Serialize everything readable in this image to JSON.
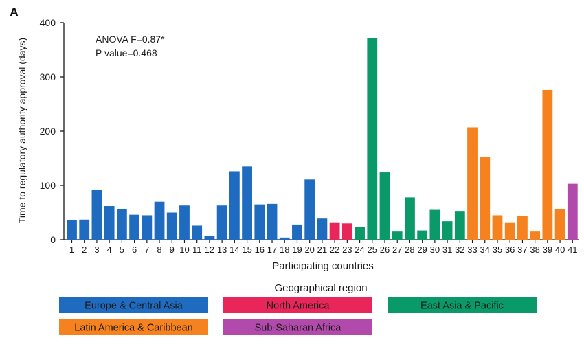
{
  "panel_label": "A",
  "annotation": {
    "line1": "ANOVA F=0.87*",
    "line2": "P value=0.468"
  },
  "colors": {
    "Europe & Central Asia": "#1f6bbf",
    "North America": "#e8265a",
    "East Asia & Pacific": "#0a9a6a",
    "Latin America & Caribbean": "#f5821f",
    "Sub-Saharan Africa": "#b24aab"
  },
  "chart_data": {
    "type": "bar",
    "xlabel": "Participating countries",
    "ylabel": "Time to regulatory authority approval (days)",
    "ylim": [
      0,
      400
    ],
    "yticks": [
      0,
      100,
      200,
      300,
      400
    ],
    "grid": false,
    "categories": [
      "1",
      "2",
      "3",
      "4",
      "5",
      "6",
      "7",
      "8",
      "9",
      "10",
      "11",
      "12",
      "13",
      "14",
      "15",
      "16",
      "17",
      "18",
      "19",
      "20",
      "21",
      "22",
      "23",
      "24",
      "25",
      "26",
      "27",
      "28",
      "29",
      "30",
      "31",
      "32",
      "33",
      "34",
      "35",
      "36",
      "37",
      "38",
      "39",
      "40",
      "41"
    ],
    "values": [
      36,
      37,
      92,
      62,
      56,
      46,
      45,
      70,
      50,
      63,
      26,
      7,
      63,
      126,
      135,
      65,
      66,
      4,
      28,
      111,
      39,
      32,
      30,
      24,
      372,
      124,
      15,
      78,
      17,
      55,
      34,
      53,
      207,
      153,
      45,
      32,
      44,
      15,
      276,
      56,
      103
    ],
    "regions": [
      "Europe & Central Asia",
      "Europe & Central Asia",
      "Europe & Central Asia",
      "Europe & Central Asia",
      "Europe & Central Asia",
      "Europe & Central Asia",
      "Europe & Central Asia",
      "Europe & Central Asia",
      "Europe & Central Asia",
      "Europe & Central Asia",
      "Europe & Central Asia",
      "Europe & Central Asia",
      "Europe & Central Asia",
      "Europe & Central Asia",
      "Europe & Central Asia",
      "Europe & Central Asia",
      "Europe & Central Asia",
      "Europe & Central Asia",
      "Europe & Central Asia",
      "Europe & Central Asia",
      "Europe & Central Asia",
      "North America",
      "North America",
      "East Asia & Pacific",
      "East Asia & Pacific",
      "East Asia & Pacific",
      "East Asia & Pacific",
      "East Asia & Pacific",
      "East Asia & Pacific",
      "East Asia & Pacific",
      "East Asia & Pacific",
      "East Asia & Pacific",
      "Latin America & Caribbean",
      "Latin America & Caribbean",
      "Latin America & Caribbean",
      "Latin America & Caribbean",
      "Latin America & Caribbean",
      "Latin America & Caribbean",
      "Latin America & Caribbean",
      "Latin America & Caribbean",
      "Sub-Saharan Africa"
    ],
    "legend_title": "Geographical region",
    "legend_position": "bottom",
    "legend": [
      "Europe & Central Asia",
      "North America",
      "East Asia & Pacific",
      "Latin America & Caribbean",
      "Sub-Saharan Africa"
    ]
  }
}
